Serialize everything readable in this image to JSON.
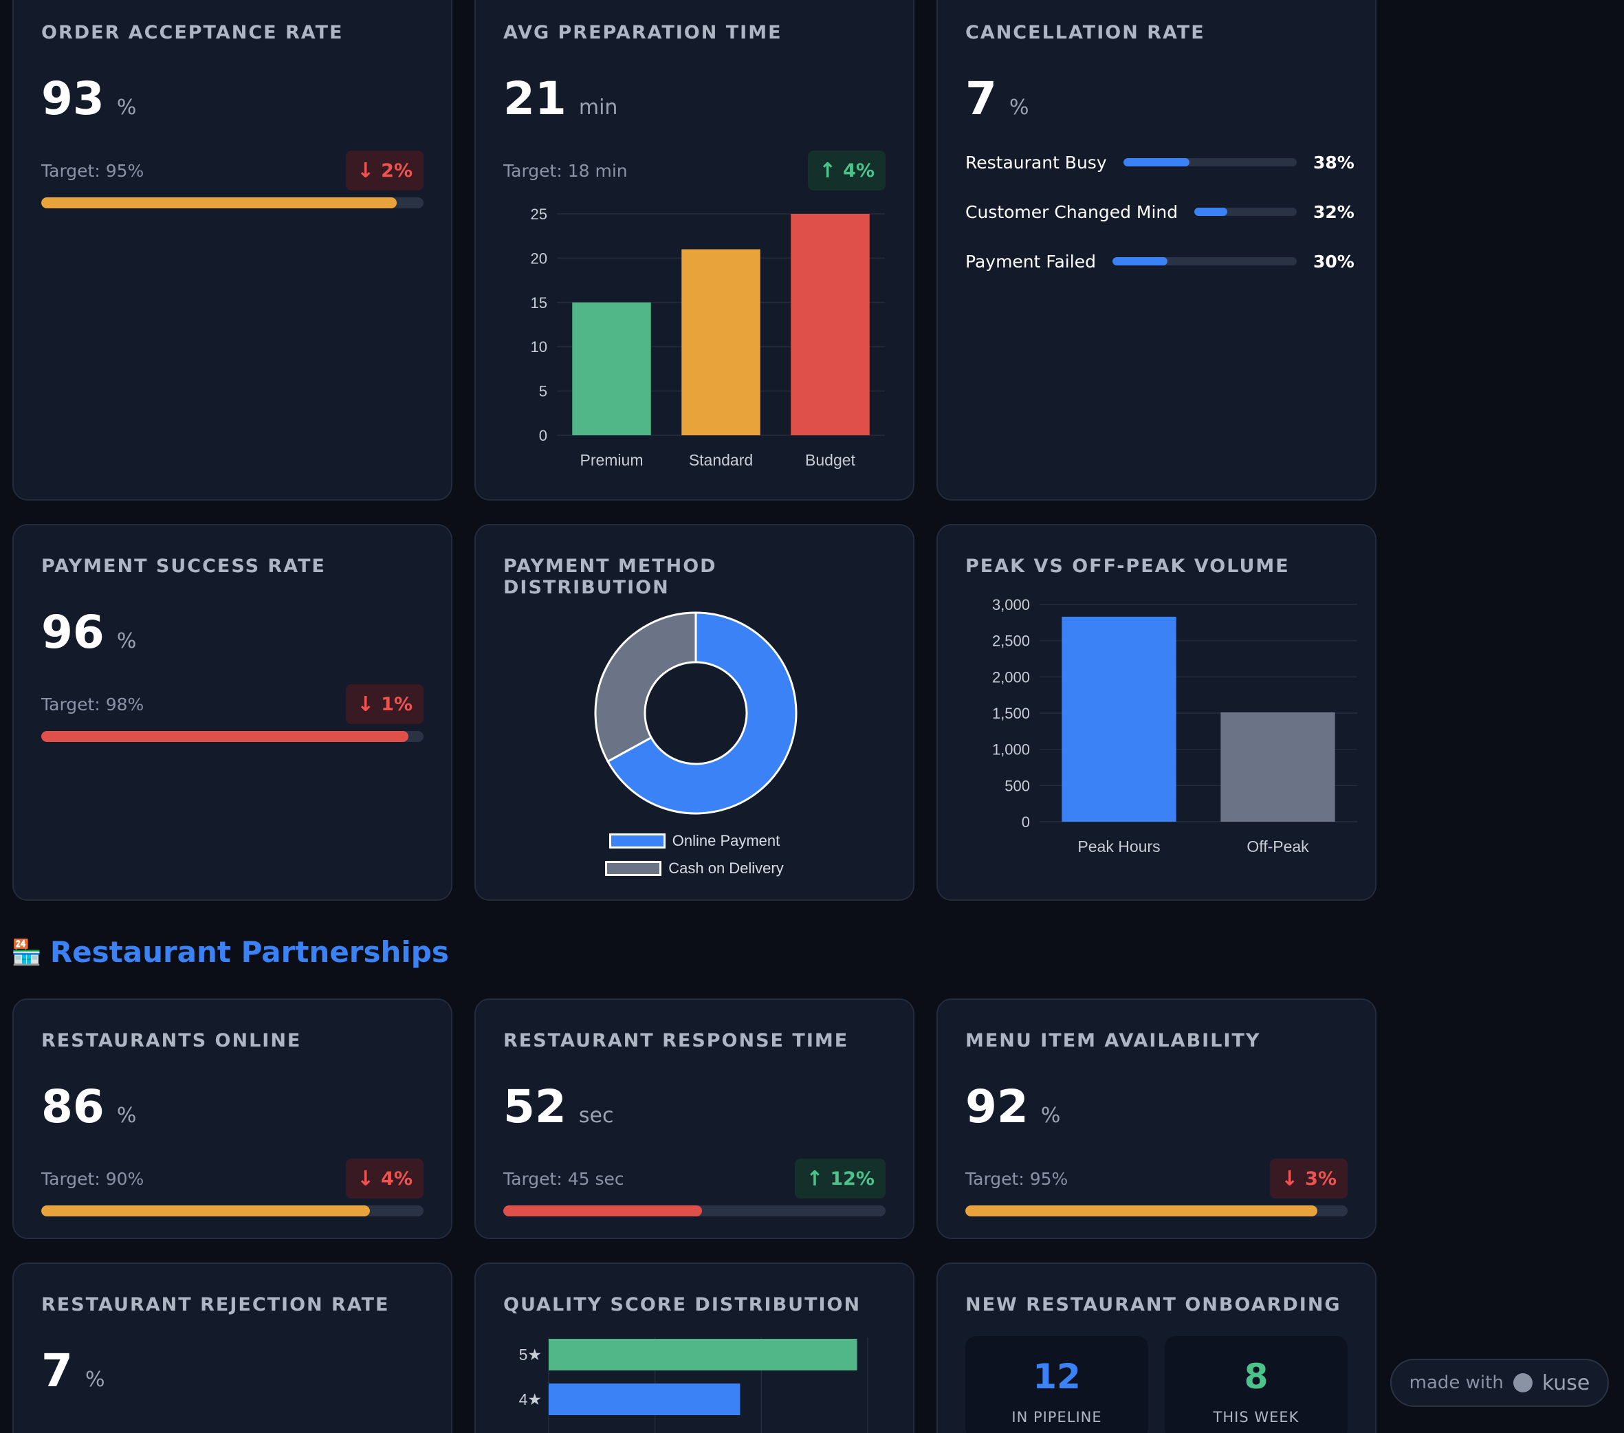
{
  "cards": {
    "acceptance": {
      "title": "ORDER ACCEPTANCE RATE",
      "value": "93",
      "unit": "%",
      "target": "Target: 95%",
      "delta": "2%",
      "direction": "down",
      "progress": 0.93,
      "bar_color": "#e8a33a"
    },
    "prep": {
      "title": "AVG PREPARATION TIME",
      "value": "21",
      "unit": "min",
      "target": "Target: 18 min",
      "delta": "4%",
      "direction": "up"
    },
    "cancellation": {
      "title": "CANCELLATION RATE",
      "value": "7",
      "unit": "%",
      "reasons": [
        {
          "label": "Restaurant Busy",
          "pct": "38%",
          "fraction": 0.38
        },
        {
          "label": "Customer Changed Mind",
          "pct": "32%",
          "fraction": 0.32
        },
        {
          "label": "Payment Failed",
          "pct": "30%",
          "fraction": 0.3
        }
      ]
    },
    "payment_success": {
      "title": "PAYMENT SUCCESS RATE",
      "value": "96",
      "unit": "%",
      "target": "Target: 98%",
      "delta": "1%",
      "direction": "down",
      "progress": 0.96,
      "bar_color": "#e0504b"
    },
    "payment_method": {
      "title": "PAYMENT METHOD DISTRIBUTION"
    },
    "peak": {
      "title": "PEAK VS OFF-PEAK VOLUME"
    },
    "restaurants_online": {
      "title": "RESTAURANTS ONLINE",
      "value": "86",
      "unit": "%",
      "target": "Target: 90%",
      "delta": "4%",
      "direction": "down",
      "progress": 0.86,
      "bar_color": "#e8a33a"
    },
    "response_time": {
      "title": "RESTAURANT RESPONSE TIME",
      "value": "52",
      "unit": "sec",
      "target": "Target: 45 sec",
      "delta": "12%",
      "direction": "up",
      "progress": 0.52,
      "bar_color": "#e0504b"
    },
    "menu_availability": {
      "title": "MENU ITEM AVAILABILITY",
      "value": "92",
      "unit": "%",
      "target": "Target: 95%",
      "delta": "3%",
      "direction": "down",
      "progress": 0.92,
      "bar_color": "#e8a33a"
    },
    "rejection": {
      "title": "RESTAURANT REJECTION RATE",
      "value": "7",
      "unit": "%"
    },
    "quality": {
      "title": "QUALITY SCORE DISTRIBUTION"
    },
    "onboarding": {
      "title": "NEW RESTAURANT ONBOARDING",
      "pipeline_value": "12",
      "pipeline_label": "IN PIPELINE",
      "week_value": "8",
      "week_label": "THIS WEEK"
    }
  },
  "section": {
    "icon": "🏪",
    "title": "Restaurant Partnerships"
  },
  "footer": {
    "made_with": "made with",
    "brand": "kuse"
  },
  "colors": {
    "accent_blue": "#3b82f6",
    "green": "#4cc38a",
    "red": "#e0504b",
    "orange": "#e8a33a",
    "gray": "#6b7486"
  },
  "chart_data": [
    {
      "type": "bar",
      "categories": [
        "Premium",
        "Standard",
        "Budget"
      ],
      "values": [
        15,
        21,
        25
      ],
      "colors": [
        "#52b788",
        "#e8a33a",
        "#e0504b"
      ],
      "ylim": [
        0,
        25
      ],
      "yticks": [
        0,
        5,
        10,
        15,
        20,
        25
      ],
      "grid": true
    },
    {
      "type": "pie",
      "labels": [
        "Online Payment",
        "Cash on Delivery"
      ],
      "values": [
        67,
        33
      ],
      "colors": [
        "#3b82f6",
        "#6b7486"
      ],
      "legend": "bottom"
    },
    {
      "type": "bar",
      "categories": [
        "Peak Hours",
        "Off-Peak"
      ],
      "values": [
        2830,
        1510
      ],
      "colors": [
        "#3b82f6",
        "#6b7486"
      ],
      "ylim": [
        0,
        3000
      ],
      "yticks": [
        "0",
        "500",
        "1,000",
        "1,500",
        "2,000",
        "2,500",
        "3,000"
      ],
      "grid": true
    },
    {
      "type": "bar",
      "orientation": "horizontal",
      "categories": [
        "5★",
        "4★"
      ],
      "values": [
        58,
        36
      ],
      "colors": [
        "#52b788",
        "#3b82f6"
      ],
      "grid": true
    }
  ]
}
